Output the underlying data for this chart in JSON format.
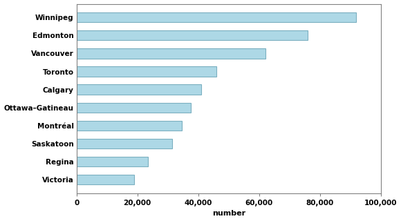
{
  "categories": [
    "Victoria",
    "Regina",
    "Saskatoon",
    "Montréal",
    "Ottawa–Gatineau",
    "Calgary",
    "Toronto",
    "Vancouver",
    "Edmonton",
    "Winnipeg"
  ],
  "values": [
    19000,
    23500,
    31500,
    34500,
    37500,
    41000,
    46000,
    62000,
    76000,
    92000
  ],
  "bar_color": "#add8e6",
  "bar_edge_color": "#7aafc0",
  "xlabel": "number",
  "xlim": [
    0,
    100000
  ],
  "xticks": [
    0,
    20000,
    40000,
    60000,
    80000,
    100000
  ],
  "xtick_labels": [
    "0",
    "20,000",
    "40,000",
    "60,000",
    "80,000",
    "100,000"
  ],
  "background_color": "#ffffff",
  "label_fontsize": 7.5,
  "xlabel_fontsize": 8,
  "tick_fontsize": 7.5,
  "bar_height": 0.55
}
